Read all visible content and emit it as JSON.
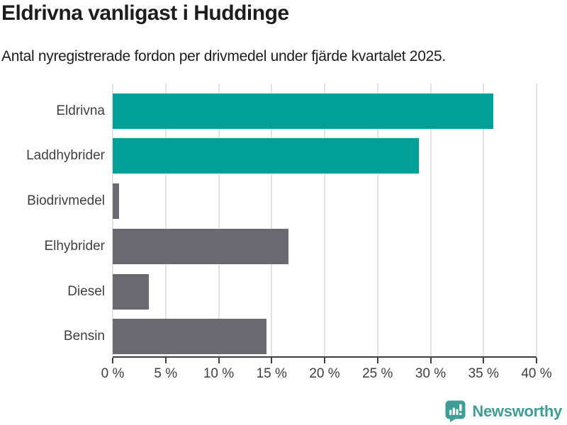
{
  "chart_data": {
    "type": "bar",
    "orientation": "horizontal",
    "title": "Eldrivna vanligast i Huddinge",
    "subtitle": "Antal nyregistrerade fordon per drivmedel under fjärde kvartalet 2025.",
    "categories": [
      "Eldrivna",
      "Laddhybrider",
      "Biodrivmedel",
      "Elhybrider",
      "Diesel",
      "Bensin"
    ],
    "values": [
      35.9,
      28.9,
      0.6,
      16.6,
      3.4,
      14.5
    ],
    "value_unit": "%",
    "xlabel": "",
    "ylabel": "",
    "xlim": [
      0,
      40
    ],
    "xticks": [
      0,
      5,
      10,
      15,
      20,
      25,
      30,
      35,
      40
    ],
    "xtick_labels": [
      "0 %",
      "5 %",
      "10 %",
      "15 %",
      "20 %",
      "25 %",
      "30 %",
      "35 %",
      "40 %"
    ],
    "grid": "vertical-on",
    "legend": "none",
    "colors": {
      "highlight": "#00a099",
      "default": "#6b6a70",
      "gridline": "#e3e3e3",
      "axis": "#3f3f3f"
    },
    "bar_colors": [
      "#00a099",
      "#00a099",
      "#6b6a70",
      "#6b6a70",
      "#6b6a70",
      "#6b6a70"
    ]
  },
  "footer": {
    "brand_name": "Newsworthy",
    "brand_color": "#3f9d97"
  }
}
